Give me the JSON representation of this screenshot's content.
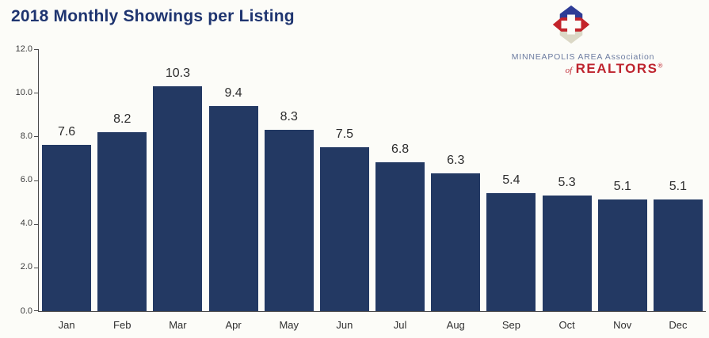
{
  "header": {
    "title": "2018 Monthly Showings per Listing"
  },
  "logo": {
    "line1": "MINNEAPOLIS AREA Association",
    "of": "of",
    "realtors": "REALTORS",
    "reg": "®",
    "colors": {
      "mark_blue": "#2e3c96",
      "mark_red": "#c3242b",
      "mark_beige": "#dbd8c6",
      "text_blue": "#6b7ba0",
      "text_red": "#be242e"
    }
  },
  "chart_data": {
    "type": "bar",
    "title": "2018 Monthly Showings per Listing",
    "categories": [
      "Jan",
      "Feb",
      "Mar",
      "Apr",
      "May",
      "Jun",
      "Jul",
      "Aug",
      "Sep",
      "Oct",
      "Nov",
      "Dec"
    ],
    "values": [
      7.6,
      8.2,
      10.3,
      9.4,
      8.3,
      7.5,
      6.8,
      6.3,
      5.4,
      5.3,
      5.1,
      5.1
    ],
    "data_labels": [
      "7.6",
      "8.2",
      "10.3",
      "9.4",
      "8.3",
      "7.5",
      "6.8",
      "6.3",
      "5.4",
      "5.3",
      "5.1",
      "5.1"
    ],
    "xlabel": "",
    "ylabel": "",
    "ylim": [
      0,
      12
    ],
    "y_ticks": [
      "12.0",
      "10.0",
      "8.0",
      "6.0",
      "4.0",
      "2.0",
      "0.0"
    ],
    "grid": false,
    "legend": null,
    "bar_color": "#233963",
    "axis_color": "#4a4a4a",
    "label_color": "#2d2d2d"
  }
}
